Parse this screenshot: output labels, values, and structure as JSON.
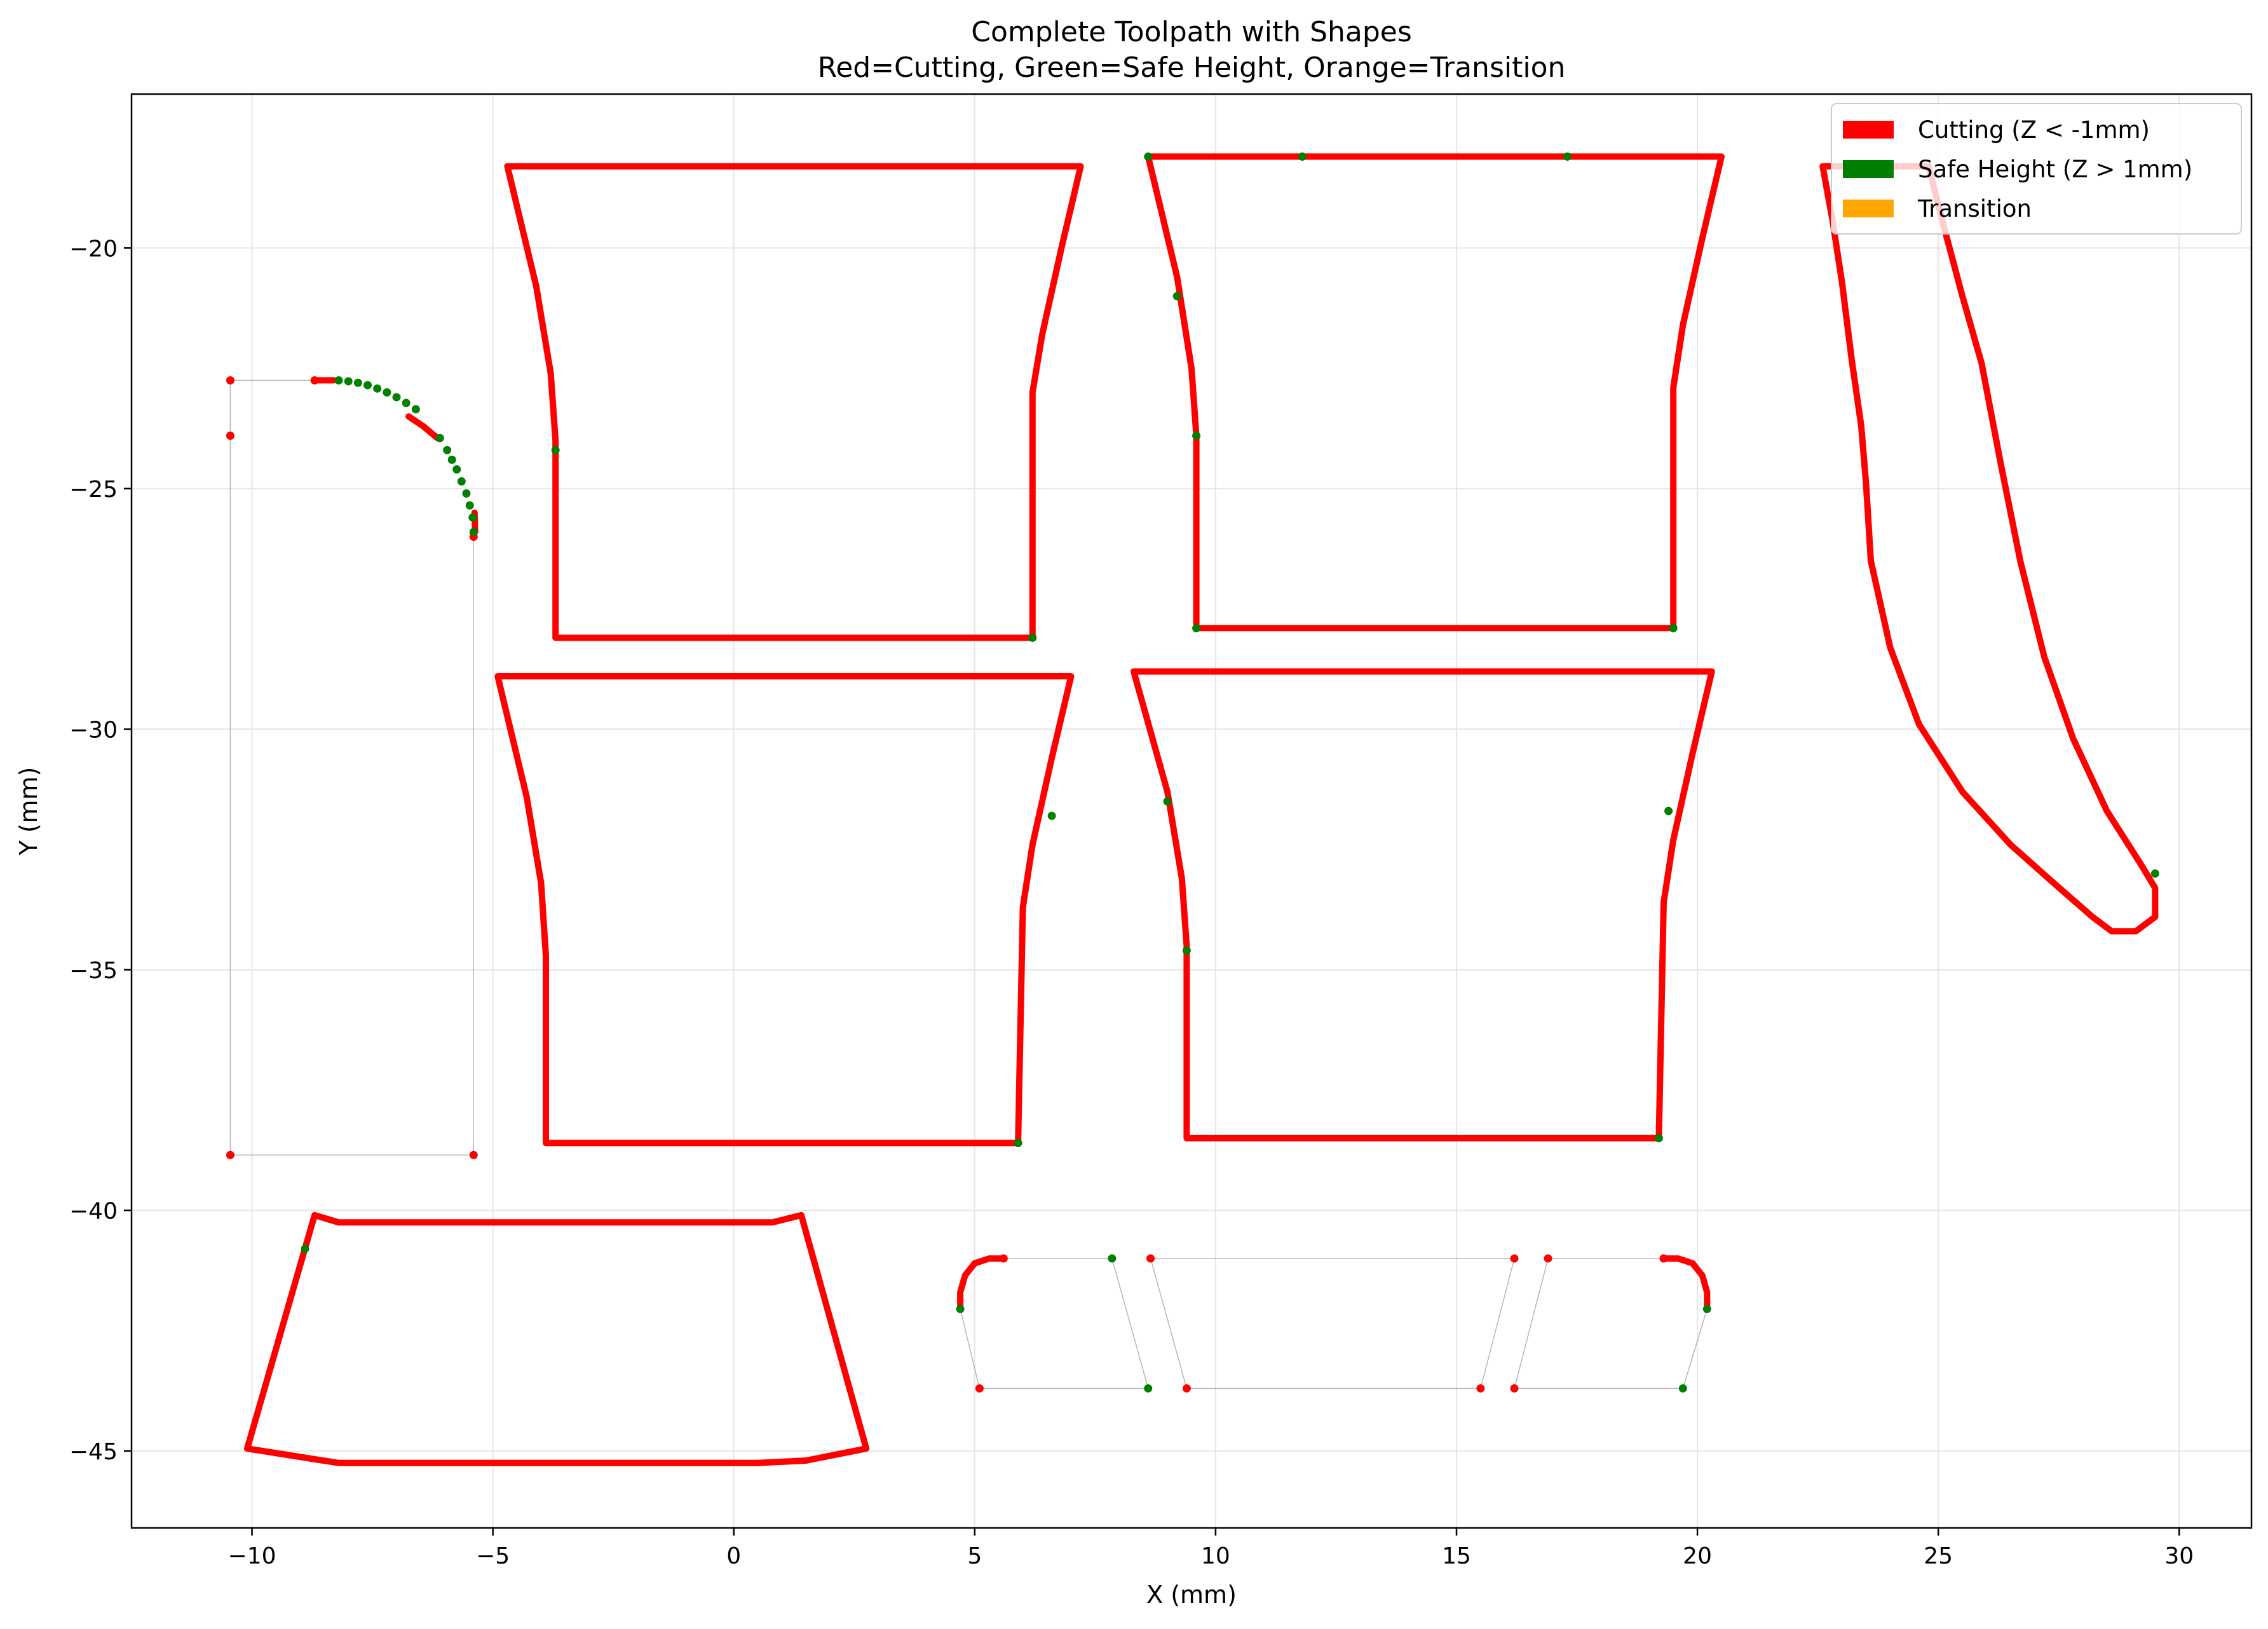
{
  "chart_data": {
    "type": "line",
    "title": "Complete Toolpath with Shapes",
    "subtitle": "Red=Cutting, Green=Safe Height, Orange=Transition",
    "xlabel": "X (mm)",
    "ylabel": "Y (mm)",
    "xlim": [
      -12.5,
      31.5
    ],
    "ylim": [
      -46.6,
      -16.8
    ],
    "xticks": [
      -10,
      -5,
      0,
      5,
      10,
      15,
      20,
      25,
      30
    ],
    "yticks": [
      -45,
      -40,
      -35,
      -30,
      -25,
      -20
    ],
    "grid": true,
    "legend_position": "top-right",
    "colors": {
      "cutting": "#ff0000",
      "safe": "#008000",
      "transition": "#ffa500",
      "travel": "#999999"
    },
    "legend": [
      {
        "label": "Cutting (Z < -1mm)",
        "color": "#ff0000"
      },
      {
        "label": "Safe Height (Z > 1mm)",
        "color": "#008000"
      },
      {
        "label": "Transition",
        "color": "#ffa500"
      }
    ],
    "series": [
      {
        "id": "shape-1",
        "mode": "cut",
        "closed": true,
        "points": [
          [
            -4.7,
            -18.3
          ],
          [
            7.2,
            -18.3
          ],
          [
            6.8,
            -20
          ],
          [
            6.4,
            -21.8
          ],
          [
            6.2,
            -23
          ],
          [
            6.2,
            -28.1
          ],
          [
            -3.7,
            -28.1
          ],
          [
            -3.7,
            -24
          ],
          [
            -3.8,
            -22.6
          ],
          [
            -4.1,
            -20.8
          ],
          [
            -4.7,
            -18.3
          ]
        ]
      },
      {
        "id": "shape-2",
        "mode": "cut",
        "closed": true,
        "points": [
          [
            8.6,
            -18.1
          ],
          [
            20.5,
            -18.1
          ],
          [
            20.1,
            -19.8
          ],
          [
            19.7,
            -21.6
          ],
          [
            19.5,
            -22.9
          ],
          [
            19.5,
            -27.9
          ],
          [
            9.6,
            -27.9
          ],
          [
            9.6,
            -23.9
          ],
          [
            9.5,
            -22.5
          ],
          [
            9.2,
            -20.6
          ],
          [
            8.6,
            -18.1
          ]
        ]
      },
      {
        "id": "shape-3",
        "mode": "cut",
        "closed": true,
        "points": [
          [
            -4.9,
            -28.9
          ],
          [
            7.0,
            -28.9
          ],
          [
            6.6,
            -30.6
          ],
          [
            6.2,
            -32.4
          ],
          [
            6.0,
            -33.7
          ],
          [
            5.9,
            -38.6
          ],
          [
            -3.9,
            -38.6
          ],
          [
            -3.9,
            -34.7
          ],
          [
            -4.0,
            -33.2
          ],
          [
            -4.3,
            -31.4
          ],
          [
            -4.9,
            -28.9
          ]
        ]
      },
      {
        "id": "shape-4",
        "mode": "cut",
        "closed": true,
        "points": [
          [
            8.3,
            -28.8
          ],
          [
            20.3,
            -28.8
          ],
          [
            19.9,
            -30.5
          ],
          [
            19.5,
            -32.3
          ],
          [
            19.3,
            -33.6
          ],
          [
            19.2,
            -38.5
          ],
          [
            9.4,
            -38.5
          ],
          [
            9.4,
            -34.5
          ],
          [
            9.3,
            -33.1
          ],
          [
            9.0,
            -31.3
          ],
          [
            8.3,
            -28.8
          ]
        ]
      },
      {
        "id": "shape-5",
        "mode": "cut",
        "closed": true,
        "points": [
          [
            22.6,
            -18.3
          ],
          [
            24.8,
            -18.3
          ],
          [
            25.1,
            -19.5
          ],
          [
            25.5,
            -21
          ],
          [
            25.9,
            -22.4
          ],
          [
            26.3,
            -24.5
          ],
          [
            26.7,
            -26.5
          ],
          [
            27.2,
            -28.5
          ],
          [
            27.8,
            -30.2
          ],
          [
            28.5,
            -31.7
          ],
          [
            29.2,
            -32.8
          ],
          [
            29.5,
            -33.3
          ],
          [
            29.5,
            -33.9
          ],
          [
            29.1,
            -34.2
          ],
          [
            28.6,
            -34.2
          ],
          [
            28.2,
            -33.9
          ],
          [
            27.4,
            -33.2
          ],
          [
            26.5,
            -32.4
          ],
          [
            25.5,
            -31.3
          ],
          [
            24.6,
            -29.9
          ],
          [
            24.0,
            -28.3
          ],
          [
            23.6,
            -26.5
          ],
          [
            23.5,
            -24.9
          ],
          [
            23.4,
            -23.7
          ],
          [
            23.2,
            -22.3
          ],
          [
            23.0,
            -20.7
          ],
          [
            22.8,
            -19.4
          ],
          [
            22.6,
            -18.3
          ]
        ]
      },
      {
        "id": "shape-6",
        "mode": "cut",
        "closed": true,
        "points": [
          [
            -8.7,
            -40.1
          ],
          [
            -8.2,
            -40.25
          ],
          [
            -7.2,
            -40.25
          ],
          [
            0.0,
            -40.25
          ],
          [
            0.8,
            -40.25
          ],
          [
            1.4,
            -40.1
          ],
          [
            2.75,
            -44.95
          ],
          [
            1.5,
            -45.2
          ],
          [
            0.5,
            -45.25
          ],
          [
            -8.2,
            -45.25
          ],
          [
            -10.1,
            -44.95
          ],
          [
            -8.7,
            -40.1
          ]
        ]
      },
      {
        "id": "arc-cut-1",
        "mode": "cut",
        "closed": false,
        "points": [
          [
            -8.7,
            -22.75
          ],
          [
            -8.3,
            -22.75
          ]
        ]
      },
      {
        "id": "arc-cut-2",
        "mode": "cut",
        "closed": false,
        "points": [
          [
            -6.75,
            -23.5
          ],
          [
            -6.45,
            -23.7
          ],
          [
            -6.15,
            -23.95
          ]
        ]
      },
      {
        "id": "arc-cut-3",
        "mode": "cut",
        "closed": false,
        "points": [
          [
            -5.38,
            -25.5
          ],
          [
            -5.37,
            -25.9
          ]
        ]
      },
      {
        "id": "slot-left",
        "mode": "cut",
        "closed": false,
        "points": [
          [
            5.6,
            -41.0
          ],
          [
            5.3,
            -41.0
          ],
          [
            5.0,
            -41.1
          ],
          [
            4.8,
            -41.35
          ],
          [
            4.7,
            -41.7
          ],
          [
            4.7,
            -42.05
          ]
        ]
      },
      {
        "id": "slot-right",
        "mode": "cut",
        "closed": false,
        "points": [
          [
            19.3,
            -41.0
          ],
          [
            19.6,
            -41.0
          ],
          [
            19.9,
            -41.1
          ],
          [
            20.1,
            -41.35
          ],
          [
            20.2,
            -41.7
          ],
          [
            20.2,
            -42.05
          ]
        ]
      }
    ],
    "travel_paths": [
      {
        "points": [
          [
            -8.7,
            -22.75
          ],
          [
            -10.45,
            -22.75
          ],
          [
            -10.45,
            -23.9
          ],
          [
            -10.45,
            -38.85
          ],
          [
            -5.4,
            -38.85
          ],
          [
            -5.4,
            -25.9
          ]
        ]
      },
      {
        "points": [
          [
            4.7,
            -42.05
          ],
          [
            5.1,
            -43.7
          ],
          [
            8.6,
            -43.7
          ],
          [
            7.85,
            -41.0
          ],
          [
            5.6,
            -41.0
          ]
        ]
      },
      {
        "points": [
          [
            8.65,
            -41.0
          ],
          [
            16.2,
            -41.0
          ],
          [
            15.5,
            -43.7
          ],
          [
            9.4,
            -43.7
          ],
          [
            8.65,
            -41.0
          ]
        ]
      },
      {
        "points": [
          [
            16.9,
            -41.0
          ],
          [
            19.3,
            -41.0
          ]
        ]
      },
      {
        "points": [
          [
            16.9,
            -41.0
          ],
          [
            16.2,
            -43.7
          ],
          [
            19.7,
            -43.7
          ],
          [
            20.2,
            -42.05
          ]
        ]
      }
    ],
    "safe_height_points": [
      [
        -8.2,
        -22.75
      ],
      [
        -8.0,
        -22.77
      ],
      [
        -7.8,
        -22.8
      ],
      [
        -7.6,
        -22.85
      ],
      [
        -7.4,
        -22.92
      ],
      [
        -7.2,
        -23.0
      ],
      [
        -7.0,
        -23.1
      ],
      [
        -6.8,
        -23.22
      ],
      [
        -6.6,
        -23.35
      ],
      [
        -6.1,
        -23.95
      ],
      [
        -5.95,
        -24.2
      ],
      [
        -5.85,
        -24.4
      ],
      [
        -5.75,
        -24.6
      ],
      [
        -5.65,
        -24.85
      ],
      [
        -5.55,
        -25.1
      ],
      [
        -5.48,
        -25.35
      ],
      [
        -5.42,
        -25.6
      ],
      [
        -5.4,
        -25.9
      ],
      [
        4.7,
        -42.05
      ],
      [
        7.85,
        -41.0
      ],
      [
        8.6,
        -43.7
      ],
      [
        19.7,
        -43.7
      ],
      [
        20.2,
        -42.05
      ],
      [
        -3.7,
        -24.2
      ],
      [
        6.2,
        -28.1
      ],
      [
        8.6,
        -18.1
      ],
      [
        11.8,
        -18.1
      ],
      [
        17.3,
        -18.1
      ],
      [
        9.2,
        -21.0
      ],
      [
        9.6,
        -23.9
      ],
      [
        9.6,
        -27.9
      ],
      [
        19.5,
        -27.9
      ],
      [
        6.6,
        -31.8
      ],
      [
        5.9,
        -38.6
      ],
      [
        9.0,
        -31.5
      ],
      [
        9.4,
        -34.6
      ],
      [
        19.4,
        -31.7
      ],
      [
        19.2,
        -38.5
      ],
      [
        29.5,
        -33.0
      ],
      [
        -8.9,
        -40.8
      ]
    ],
    "cut_points": [
      [
        -10.45,
        -22.75
      ],
      [
        -10.45,
        -23.9
      ],
      [
        -10.45,
        -38.85
      ],
      [
        -5.4,
        -38.85
      ],
      [
        -5.4,
        -26.0
      ],
      [
        -8.7,
        -22.75
      ],
      [
        5.1,
        -43.7
      ],
      [
        5.6,
        -41.0
      ],
      [
        8.65,
        -41.0
      ],
      [
        9.4,
        -43.7
      ],
      [
        15.5,
        -43.7
      ],
      [
        16.2,
        -41.0
      ],
      [
        16.9,
        -41.0
      ],
      [
        16.2,
        -43.7
      ],
      [
        19.3,
        -41.0
      ]
    ]
  }
}
